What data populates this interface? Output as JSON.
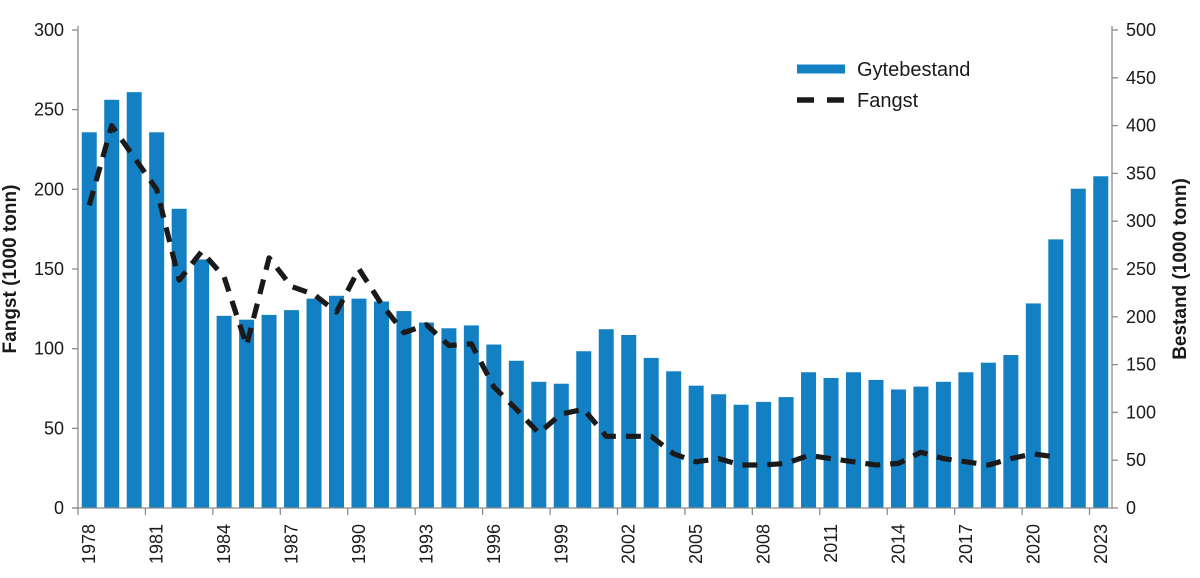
{
  "chart_data": {
    "type": "bar+line",
    "categories": [
      "1978",
      "1979",
      "1980",
      "1981",
      "1982",
      "1983",
      "1984",
      "1985",
      "1986",
      "1987",
      "1988",
      "1989",
      "1990",
      "1991",
      "1992",
      "1993",
      "1994",
      "1995",
      "1996",
      "1997",
      "1998",
      "1999",
      "2000",
      "2001",
      "2002",
      "2003",
      "2004",
      "2005",
      "2006",
      "2007",
      "2008",
      "2009",
      "2010",
      "2011",
      "2012",
      "2013",
      "2014",
      "2015",
      "2016",
      "2017",
      "2018",
      "2019",
      "2020",
      "2021",
      "2022",
      "2023"
    ],
    "series": [
      {
        "name": "Gytebestand",
        "type": "bar",
        "axis": "right",
        "color": "#1480c4",
        "values": [
          393,
          427,
          435,
          393,
          313,
          260,
          201,
          197,
          202,
          207,
          219,
          222,
          219,
          216,
          206,
          194,
          188,
          191,
          171,
          154,
          132,
          130,
          164,
          187,
          181,
          157,
          143,
          128,
          119,
          108,
          111,
          116,
          142,
          136,
          142,
          134,
          124,
          127,
          132,
          142,
          152,
          160,
          214,
          281,
          334,
          347
        ]
      },
      {
        "name": "Fangst",
        "type": "line",
        "axis": "left",
        "color": "#1a1a1a",
        "dashed": true,
        "values": [
          190,
          240,
          220,
          200,
          143,
          161,
          145,
          102,
          157,
          139,
          134,
          123,
          150,
          128,
          110,
          115,
          102,
          103,
          76,
          62,
          47,
          59,
          62,
          45,
          45,
          45,
          34,
          29,
          31,
          27,
          27,
          28,
          33,
          31,
          29,
          27,
          28,
          35,
          31,
          29,
          27,
          31,
          34,
          32,
          null,
          null
        ]
      }
    ],
    "left_axis": {
      "label": "Fangst (1000 tonn)",
      "min": 0,
      "max": 300,
      "ticks": [
        0,
        50,
        100,
        150,
        200,
        250,
        300
      ]
    },
    "right_axis": {
      "label": "Bestand (1000 tonn)",
      "min": 0,
      "max": 500,
      "ticks": [
        0,
        50,
        100,
        150,
        200,
        250,
        300,
        350,
        400,
        450,
        500
      ]
    },
    "x_axis": {
      "labeled_years": [
        "1978",
        "1981",
        "1984",
        "1987",
        "1990",
        "1993",
        "1996",
        "1999",
        "2002",
        "2005",
        "2008",
        "2011",
        "2014",
        "2017",
        "2020",
        "2023"
      ],
      "label_every": 3
    },
    "legend": {
      "position": "top-right",
      "items": [
        "Gytebestand",
        "Fangst"
      ]
    },
    "grid": false,
    "colors": {
      "axis": "#8c8c8c",
      "text": "#1a1a1a"
    }
  }
}
